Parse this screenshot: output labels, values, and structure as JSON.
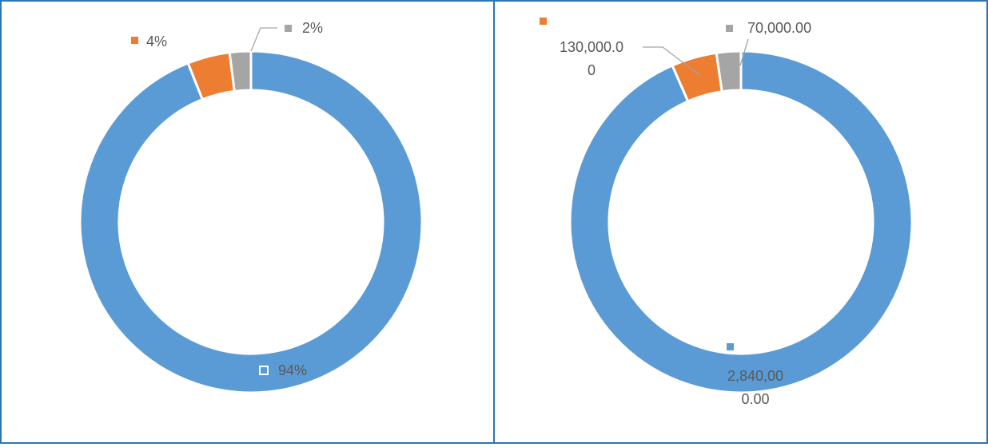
{
  "chart_data": [
    {
      "type": "donut",
      "values": [
        94,
        4,
        2
      ],
      "value_labels": [
        "94%",
        "4%",
        "2%"
      ],
      "colors": [
        "#5b9bd5",
        "#ed7d31",
        "#a5a5a5"
      ]
    },
    {
      "type": "donut",
      "values": [
        2840000,
        130000,
        70000
      ],
      "value_labels": [
        "2,840,000.00",
        "130,000.00",
        "70,000.00"
      ],
      "colors": [
        "#5b9bd5",
        "#ed7d31",
        "#a5a5a5"
      ]
    }
  ]
}
